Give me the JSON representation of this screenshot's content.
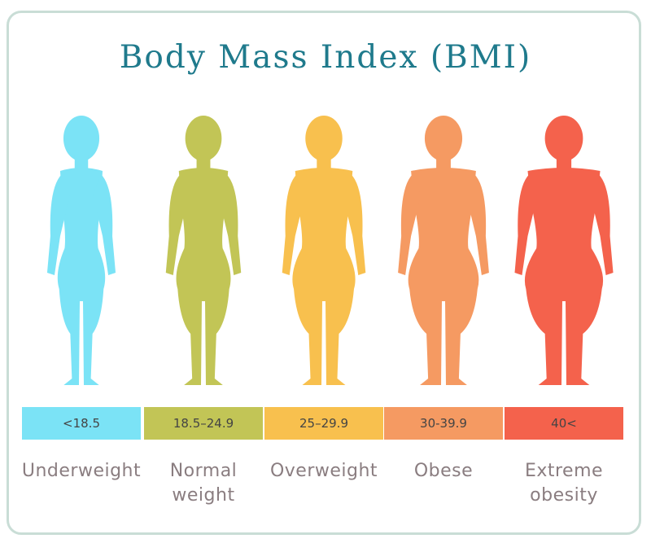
{
  "title": "Body Mass Index (BMI)",
  "categories": [
    {
      "range": "<18.5",
      "label_line1": "Underweight",
      "label_line2": "",
      "color": "#7be3f6"
    },
    {
      "range": "18.5–24.9",
      "label_line1": "Normal",
      "label_line2": "weight",
      "color": "#c2c556"
    },
    {
      "range": "25–29.9",
      "label_line1": "Overweight",
      "label_line2": "",
      "color": "#f8c04e"
    },
    {
      "range": "30-39.9",
      "label_line1": "Obese",
      "label_line2": "",
      "color": "#f59a62"
    },
    {
      "range": "40<",
      "label_line1": "Extreme",
      "label_line2": "obesity",
      "color": "#f4624c"
    }
  ]
}
